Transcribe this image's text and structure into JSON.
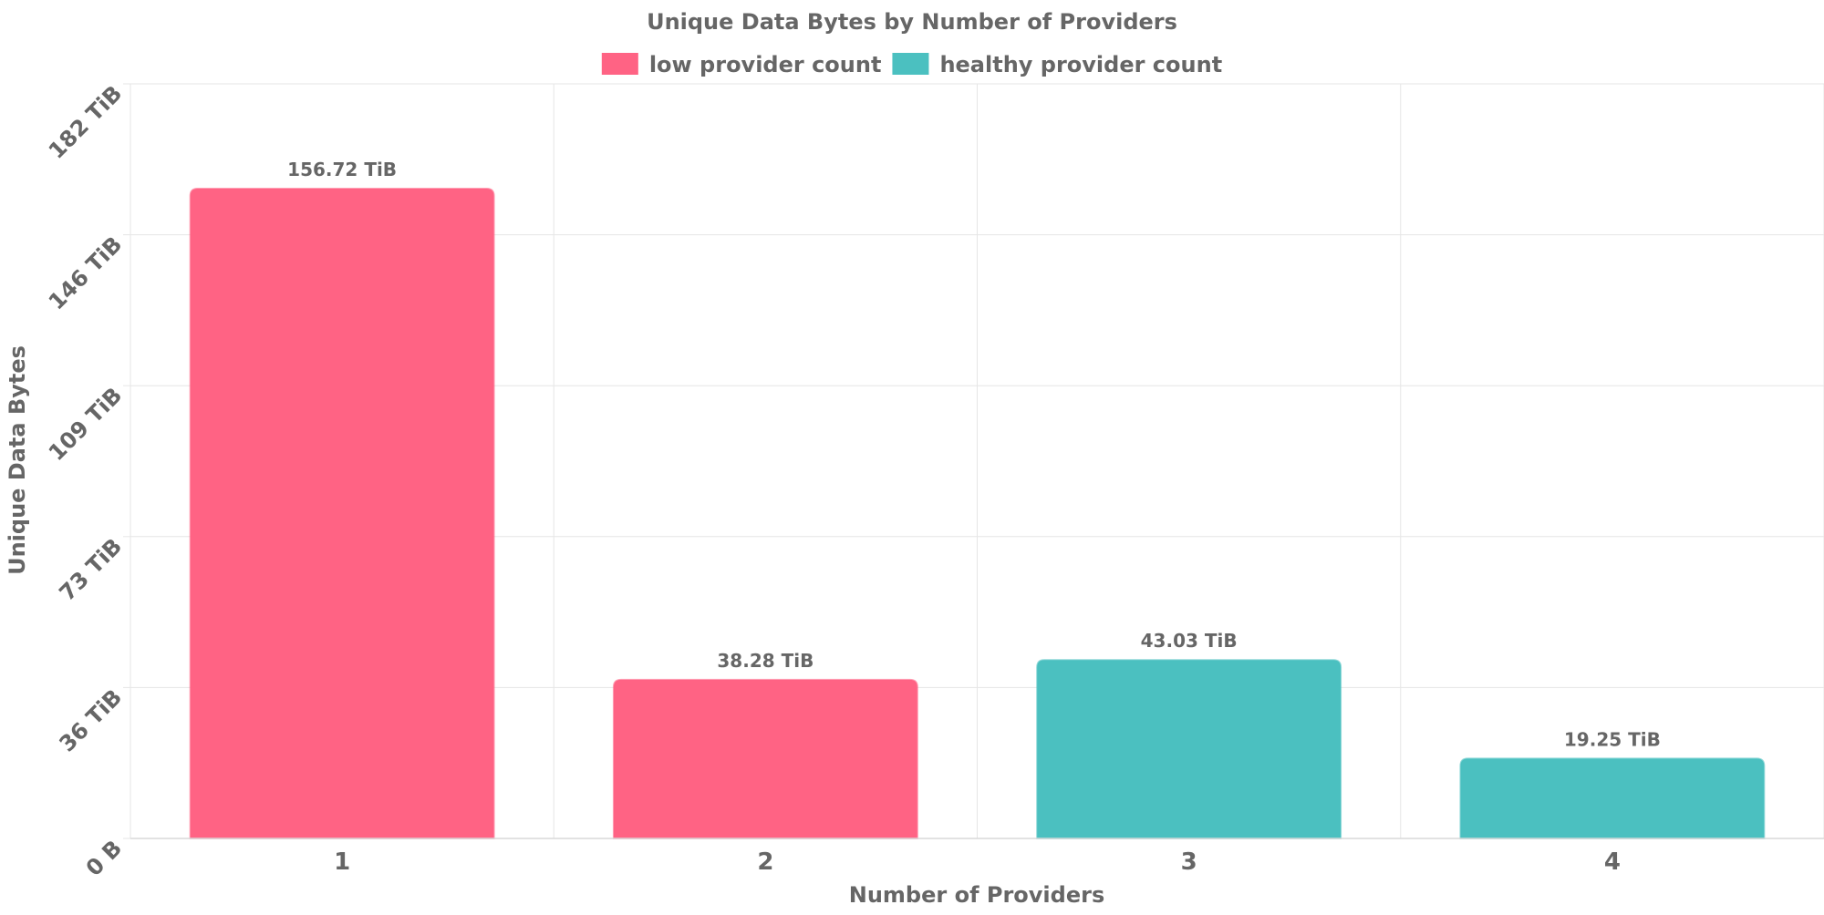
{
  "chart_data": {
    "type": "bar",
    "title": "Unique Data Bytes by Number of Providers",
    "xlabel": "Number of Providers",
    "ylabel": "Unique Data Bytes",
    "categories": [
      "1",
      "2",
      "3",
      "4"
    ],
    "values": [
      156.72,
      38.28,
      43.03,
      19.25
    ],
    "value_unit": "TiB",
    "value_labels": [
      "156.72 TiB",
      "38.28 TiB",
      "43.03 TiB",
      "19.25 TiB"
    ],
    "bar_series": [
      "low provider count",
      "low provider count",
      "healthy provider count",
      "healthy provider count"
    ],
    "ylim": [
      0,
      182
    ],
    "y_ticks": [
      0,
      36.4,
      72.8,
      109.2,
      145.6,
      182
    ],
    "y_tick_labels": [
      "0 B",
      "36 TiB",
      "73 TiB",
      "109 TiB",
      "146 TiB",
      "182 TiB"
    ],
    "grid": true,
    "legend_placement": "top-center",
    "legend": [
      {
        "name": "low provider count",
        "color": "#ff6384"
      },
      {
        "name": "healthy provider count",
        "color": "#4bc0c0"
      }
    ]
  }
}
